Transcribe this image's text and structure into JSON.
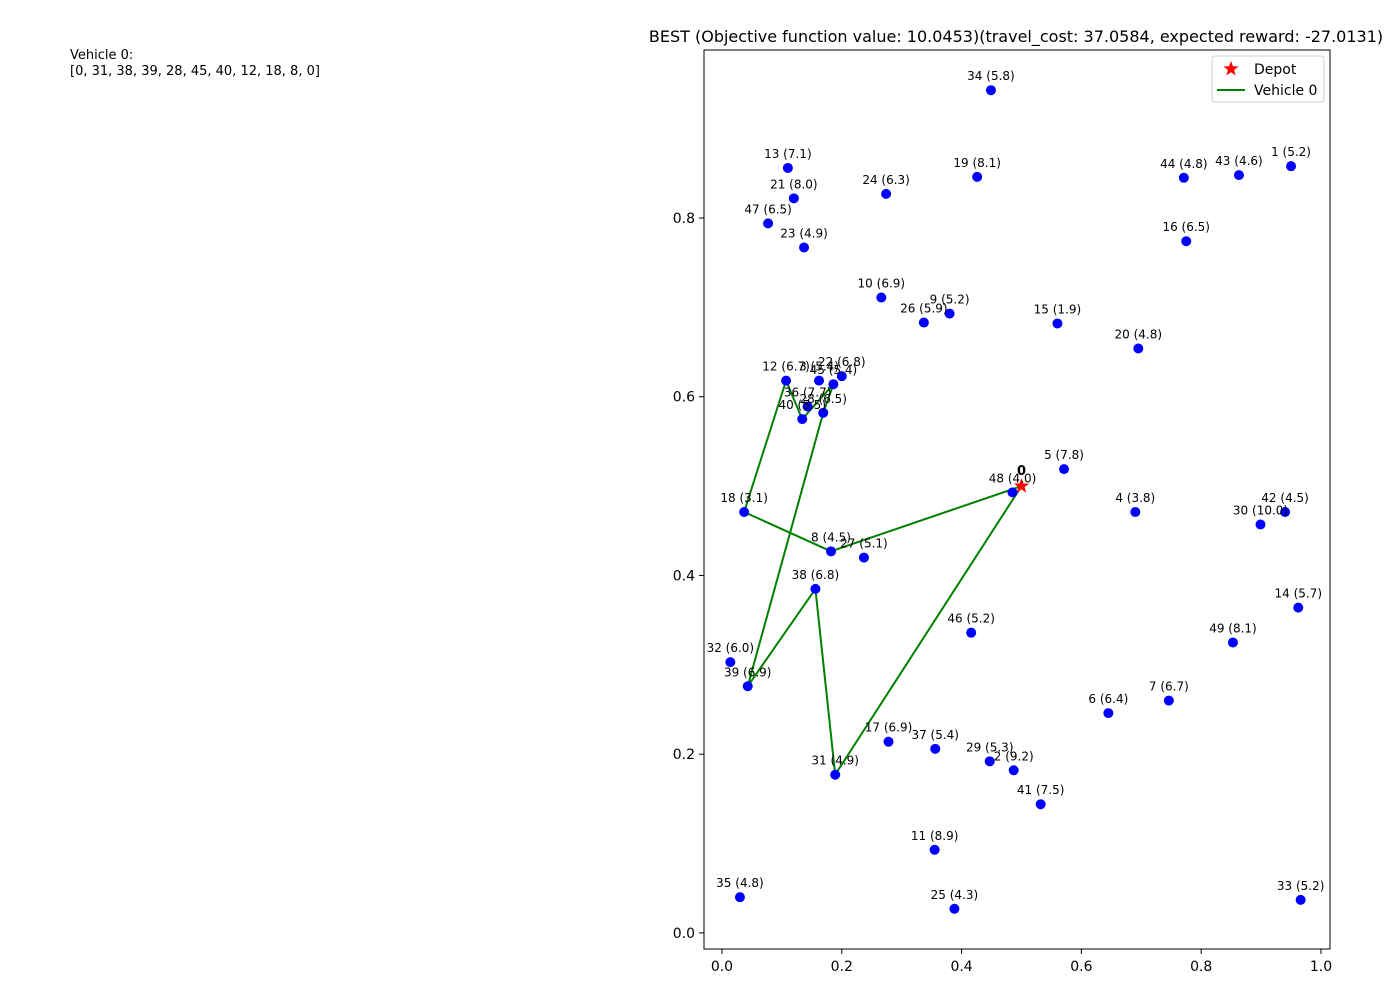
{
  "route_text": {
    "vehicle_label": "Vehicle 0:",
    "route": "[0, 31, 38, 39, 28, 45, 40, 12, 18, 8, 0]"
  },
  "chart_data": {
    "type": "scatter",
    "title": "BEST (Objective function value: 10.0453)(travel_cost: 37.0584, expected reward: -27.0131)",
    "xlabel": "",
    "ylabel": "",
    "xlim": [
      -0.03,
      1.015
    ],
    "ylim": [
      -0.018,
      0.988
    ],
    "x_ticks": [
      0.0,
      0.2,
      0.4,
      0.6,
      0.8,
      1.0
    ],
    "x_tick_labels": [
      "0.0",
      "0.2",
      "0.4",
      "0.6",
      "0.8",
      "1.0"
    ],
    "y_ticks": [
      0.0,
      0.2,
      0.4,
      0.6,
      0.8
    ],
    "y_tick_labels": [
      "0.0",
      "0.2",
      "0.4",
      "0.6",
      "0.8"
    ],
    "grid": false,
    "legend": {
      "placement": "top-right",
      "entries": [
        {
          "label": "Depot",
          "marker": "star",
          "color": "#ff0000"
        },
        {
          "label": "Vehicle 0",
          "marker": "line",
          "color": "#008000"
        }
      ]
    },
    "depot": {
      "id": 0,
      "label": "0",
      "x": 0.5,
      "y": 0.5
    },
    "customers": [
      {
        "id": 1,
        "label": "1 (5.2)",
        "x": 0.95,
        "y": 0.858
      },
      {
        "id": 2,
        "label": "2 (9.2)",
        "x": 0.487,
        "y": 0.182
      },
      {
        "id": 4,
        "label": "4 (3.8)",
        "x": 0.69,
        "y": 0.471
      },
      {
        "id": 5,
        "label": "5 (7.8)",
        "x": 0.571,
        "y": 0.519
      },
      {
        "id": 6,
        "label": "6 (6.4)",
        "x": 0.645,
        "y": 0.246
      },
      {
        "id": 7,
        "label": "7 (6.7)",
        "x": 0.746,
        "y": 0.26
      },
      {
        "id": 8,
        "label": "8 (4.5)",
        "x": 0.182,
        "y": 0.427
      },
      {
        "id": 9,
        "label": "9 (5.2)",
        "x": 0.38,
        "y": 0.693
      },
      {
        "id": 10,
        "label": "10 (6.9)",
        "x": 0.266,
        "y": 0.711
      },
      {
        "id": 11,
        "label": "11 (8.9)",
        "x": 0.355,
        "y": 0.093
      },
      {
        "id": 12,
        "label": "12 (6.7)",
        "x": 0.107,
        "y": 0.618
      },
      {
        "id": 13,
        "label": "13 (7.1)",
        "x": 0.11,
        "y": 0.856
      },
      {
        "id": 14,
        "label": "14 (5.7)",
        "x": 0.962,
        "y": 0.364
      },
      {
        "id": 15,
        "label": "15 (1.9)",
        "x": 0.56,
        "y": 0.682
      },
      {
        "id": 16,
        "label": "16 (6.5)",
        "x": 0.775,
        "y": 0.774
      },
      {
        "id": 17,
        "label": "17 (6.9)",
        "x": 0.278,
        "y": 0.214
      },
      {
        "id": 18,
        "label": "18 (3.1)",
        "x": 0.037,
        "y": 0.471
      },
      {
        "id": 19,
        "label": "19 (8.1)",
        "x": 0.426,
        "y": 0.846
      },
      {
        "id": 20,
        "label": "20 (4.8)",
        "x": 0.695,
        "y": 0.654
      },
      {
        "id": 21,
        "label": "21 (8.0)",
        "x": 0.12,
        "y": 0.822
      },
      {
        "id": 22,
        "label": "22 (6.8)",
        "x": 0.2,
        "y": 0.623
      },
      {
        "id": 23,
        "label": "23 (4.9)",
        "x": 0.137,
        "y": 0.767
      },
      {
        "id": 24,
        "label": "24 (6.3)",
        "x": 0.274,
        "y": 0.827
      },
      {
        "id": 25,
        "label": "25 (4.3)",
        "x": 0.388,
        "y": 0.027
      },
      {
        "id": 26,
        "label": "26 (5.9)",
        "x": 0.337,
        "y": 0.683
      },
      {
        "id": 27,
        "label": "27 (5.1)",
        "x": 0.237,
        "y": 0.42
      },
      {
        "id": 28,
        "label": "28 (6.5)",
        "x": 0.169,
        "y": 0.582
      },
      {
        "id": 29,
        "label": "29 (5.3)",
        "x": 0.447,
        "y": 0.192
      },
      {
        "id": 30,
        "label": "30 (10.0)",
        "x": 0.899,
        "y": 0.457
      },
      {
        "id": 31,
        "label": "31 (4.9)",
        "x": 0.189,
        "y": 0.177
      },
      {
        "id": 32,
        "label": "32 (6.0)",
        "x": 0.014,
        "y": 0.303
      },
      {
        "id": 33,
        "label": "33 (5.2)",
        "x": 0.966,
        "y": 0.037
      },
      {
        "id": 34,
        "label": "34 (5.8)",
        "x": 0.449,
        "y": 0.943
      },
      {
        "id": 35,
        "label": "35 (4.8)",
        "x": 0.03,
        "y": 0.04
      },
      {
        "id": 36,
        "label": "36 (7.7)",
        "x": 0.143,
        "y": 0.589
      },
      {
        "id": 37,
        "label": "37 (5.4)",
        "x": 0.356,
        "y": 0.206
      },
      {
        "id": 38,
        "label": "38 (6.8)",
        "x": 0.156,
        "y": 0.385
      },
      {
        "id": 39,
        "label": "39 (6.9)",
        "x": 0.043,
        "y": 0.276
      },
      {
        "id": 40,
        "label": "40 (5.5)",
        "x": 0.134,
        "y": 0.575
      },
      {
        "id": 41,
        "label": "41 (7.5)",
        "x": 0.532,
        "y": 0.144
      },
      {
        "id": 42,
        "label": "42 (4.5)",
        "x": 0.94,
        "y": 0.471
      },
      {
        "id": 43,
        "label": "43 (4.6)",
        "x": 0.863,
        "y": 0.848
      },
      {
        "id": 44,
        "label": "44 (4.8)",
        "x": 0.771,
        "y": 0.845
      },
      {
        "id": 45,
        "label": "45 (5.4)",
        "x": 0.186,
        "y": 0.614
      },
      {
        "id": 46,
        "label": "46 (5.2)",
        "x": 0.416,
        "y": 0.336
      },
      {
        "id": 47,
        "label": "47 (6.5)",
        "x": 0.077,
        "y": 0.794
      },
      {
        "id": 48,
        "label": "48 (4.0)",
        "x": 0.485,
        "y": 0.493
      },
      {
        "id": 49,
        "label": "49 (8.1)",
        "x": 0.853,
        "y": 0.325
      },
      {
        "id": 3,
        "label": "3 (5.4)",
        "x": 0.162,
        "y": 0.618
      }
    ],
    "series": [
      {
        "name": "Vehicle 0",
        "color": "#008000",
        "route": [
          0,
          31,
          38,
          39,
          28,
          45,
          40,
          12,
          18,
          8,
          0
        ]
      }
    ],
    "colors": {
      "customer": "#0000ff",
      "depot": "#ff0000",
      "route": "#008000"
    }
  }
}
